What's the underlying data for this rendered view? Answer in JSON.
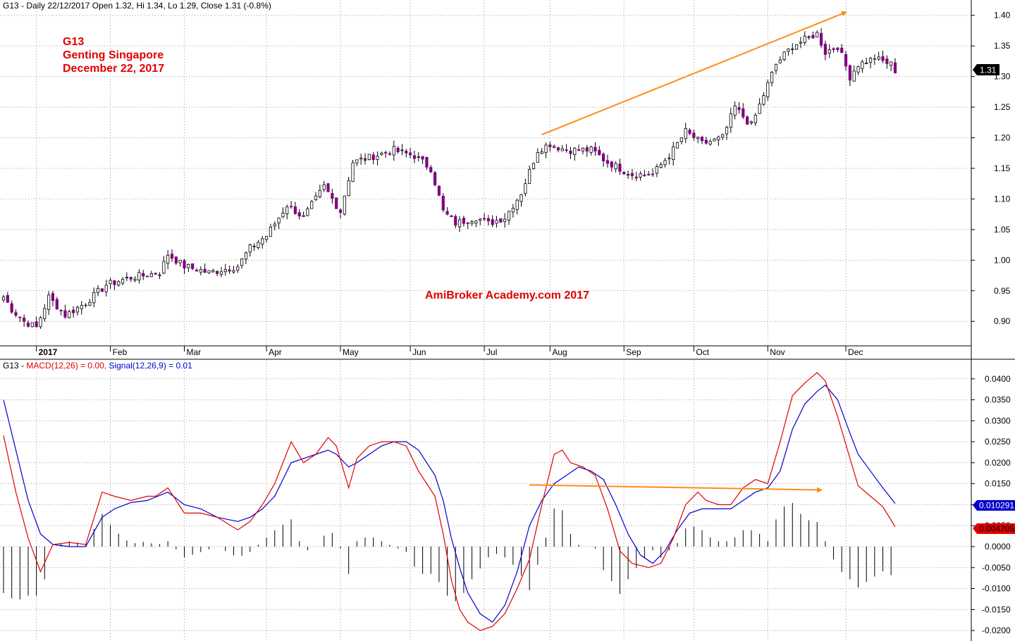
{
  "price_title": {
    "symbol": "G13",
    "text": "G13 - Daily 22/12/2017 Open 1.32, Hi 1.34, Lo 1.29, Close 1.31 (-0.8%)"
  },
  "annotations": {
    "line1": "G13",
    "line2": "Genting Singapore",
    "line3": "December 22, 2017",
    "watermark": "AmiBroker Academy.com 2017"
  },
  "macd_title": {
    "prefix": "G13 - ",
    "macd": "MACD(12,26) = 0.00,",
    "signal": "Signal(12,26,9) = 0.01"
  },
  "colors": {
    "up_candle": "#ffffff",
    "down_candle": "#800080",
    "macd_line": "#e00000",
    "signal_line": "#0000cc",
    "histogram": "#000000",
    "trend_arrow": "#ff8c1a",
    "grid": "#9a9a9a"
  },
  "chart_data": [
    {
      "type": "candlestick",
      "title": "G13 - Daily 22/12/2017 Open 1.32, Hi 1.34, Lo 1.29, Close 1.31 (-0.8%)",
      "xlabel": "",
      "ylabel": "",
      "x_axis_labels": [
        "2017",
        "Feb",
        "Mar",
        "Apr",
        "May",
        "Jun",
        "Jul",
        "Aug",
        "Sep",
        "Oct",
        "Nov",
        "Dec"
      ],
      "y_ticks": [
        1.4,
        1.35,
        1.3,
        1.25,
        1.2,
        1.15,
        1.1,
        1.05,
        1.0,
        0.95,
        0.9
      ],
      "ylim": [
        0.86,
        1.425
      ],
      "last_value_label": "1.31",
      "close_keypoints": [
        {
          "x": 0,
          "y": 0.94
        },
        {
          "x": 2,
          "y": 0.92
        },
        {
          "x": 5,
          "y": 0.9
        },
        {
          "x": 8,
          "y": 0.89
        },
        {
          "x": 11,
          "y": 0.94
        },
        {
          "x": 15,
          "y": 0.91
        },
        {
          "x": 20,
          "y": 0.93
        },
        {
          "x": 25,
          "y": 0.96
        },
        {
          "x": 30,
          "y": 0.97
        },
        {
          "x": 38,
          "y": 0.98
        },
        {
          "x": 40,
          "y": 1.01
        },
        {
          "x": 44,
          "y": 0.99
        },
        {
          "x": 50,
          "y": 0.98
        },
        {
          "x": 57,
          "y": 0.99
        },
        {
          "x": 60,
          "y": 1.02
        },
        {
          "x": 64,
          "y": 1.04
        },
        {
          "x": 69,
          "y": 1.09
        },
        {
          "x": 73,
          "y": 1.07
        },
        {
          "x": 78,
          "y": 1.12
        },
        {
          "x": 82,
          "y": 1.08
        },
        {
          "x": 85,
          "y": 1.16
        },
        {
          "x": 90,
          "y": 1.17
        },
        {
          "x": 95,
          "y": 1.18
        },
        {
          "x": 100,
          "y": 1.17
        },
        {
          "x": 104,
          "y": 1.15
        },
        {
          "x": 107,
          "y": 1.08
        },
        {
          "x": 110,
          "y": 1.06
        },
        {
          "x": 115,
          "y": 1.07
        },
        {
          "x": 118,
          "y": 1.06
        },
        {
          "x": 122,
          "y": 1.07
        },
        {
          "x": 126,
          "y": 1.11
        },
        {
          "x": 130,
          "y": 1.18
        },
        {
          "x": 133,
          "y": 1.19
        },
        {
          "x": 137,
          "y": 1.18
        },
        {
          "x": 143,
          "y": 1.18
        },
        {
          "x": 147,
          "y": 1.16
        },
        {
          "x": 153,
          "y": 1.14
        },
        {
          "x": 158,
          "y": 1.14
        },
        {
          "x": 163,
          "y": 1.18
        },
        {
          "x": 166,
          "y": 1.21
        },
        {
          "x": 170,
          "y": 1.19
        },
        {
          "x": 175,
          "y": 1.2
        },
        {
          "x": 178,
          "y": 1.25
        },
        {
          "x": 182,
          "y": 1.22
        },
        {
          "x": 185,
          "y": 1.27
        },
        {
          "x": 188,
          "y": 1.32
        },
        {
          "x": 192,
          "y": 1.35
        },
        {
          "x": 195,
          "y": 1.36
        },
        {
          "x": 198,
          "y": 1.37
        },
        {
          "x": 200,
          "y": 1.34
        },
        {
          "x": 203,
          "y": 1.35
        },
        {
          "x": 206,
          "y": 1.3
        },
        {
          "x": 208,
          "y": 1.32
        },
        {
          "x": 212,
          "y": 1.33
        },
        {
          "x": 216,
          "y": 1.32
        },
        {
          "x": 217,
          "y": 1.31
        }
      ],
      "trend_line": {
        "from": {
          "x": 131,
          "y": 1.205
        },
        "to": {
          "x": 205,
          "y": 1.405
        }
      }
    },
    {
      "type": "line",
      "title": "G13 - MACD(12,26) = 0.00, Signal(12,26,9) = 0.01",
      "y_ticks": [
        0.04,
        0.035,
        0.03,
        0.025,
        0.02,
        0.015,
        0.01,
        0.005,
        0.0,
        -0.005,
        -0.01,
        -0.015,
        -0.02
      ],
      "y_tick_labels": [
        "0.0400",
        "0.0350",
        "0.0300",
        "0.0250",
        "0.0200",
        "0.0150",
        "0.0100",
        "0.0050",
        "0.0000",
        "-0.0050",
        "-0.0100",
        "-0.0150",
        "-0.0200"
      ],
      "ylim": [
        -0.0225,
        0.0445
      ],
      "value_labels": {
        "signal": "0.010291",
        "macd": "0.004705"
      },
      "series": [
        {
          "name": "MACD(12,26)",
          "key": "macd",
          "points": [
            {
              "x": 0,
              "y": 0.0265
            },
            {
              "x": 3,
              "y": 0.013
            },
            {
              "x": 6,
              "y": 0.002
            },
            {
              "x": 9,
              "y": -0.006
            },
            {
              "x": 12,
              "y": 0.0005
            },
            {
              "x": 16,
              "y": 0.001
            },
            {
              "x": 20,
              "y": 0.0005
            },
            {
              "x": 24,
              "y": 0.013
            },
            {
              "x": 27,
              "y": 0.012
            },
            {
              "x": 31,
              "y": 0.011
            },
            {
              "x": 35,
              "y": 0.012
            },
            {
              "x": 37,
              "y": 0.012
            },
            {
              "x": 40,
              "y": 0.014
            },
            {
              "x": 44,
              "y": 0.008
            },
            {
              "x": 48,
              "y": 0.008
            },
            {
              "x": 52,
              "y": 0.007
            },
            {
              "x": 57,
              "y": 0.004
            },
            {
              "x": 60,
              "y": 0.006
            },
            {
              "x": 63,
              "y": 0.01
            },
            {
              "x": 66,
              "y": 0.015
            },
            {
              "x": 70,
              "y": 0.025
            },
            {
              "x": 73,
              "y": 0.02
            },
            {
              "x": 76,
              "y": 0.022
            },
            {
              "x": 79,
              "y": 0.026
            },
            {
              "x": 81,
              "y": 0.024
            },
            {
              "x": 84,
              "y": 0.014
            },
            {
              "x": 86,
              "y": 0.021
            },
            {
              "x": 89,
              "y": 0.024
            },
            {
              "x": 92,
              "y": 0.025
            },
            {
              "x": 95,
              "y": 0.025
            },
            {
              "x": 98,
              "y": 0.024
            },
            {
              "x": 101,
              "y": 0.018
            },
            {
              "x": 105,
              "y": 0.012
            },
            {
              "x": 107,
              "y": 0.003
            },
            {
              "x": 109,
              "y": -0.008
            },
            {
              "x": 111,
              "y": -0.015
            },
            {
              "x": 113,
              "y": -0.018
            },
            {
              "x": 116,
              "y": -0.02
            },
            {
              "x": 119,
              "y": -0.019
            },
            {
              "x": 122,
              "y": -0.016
            },
            {
              "x": 125,
              "y": -0.01
            },
            {
              "x": 128,
              "y": -0.003
            },
            {
              "x": 131,
              "y": 0.01
            },
            {
              "x": 134,
              "y": 0.022
            },
            {
              "x": 136,
              "y": 0.023
            },
            {
              "x": 138,
              "y": 0.02
            },
            {
              "x": 141,
              "y": 0.019
            },
            {
              "x": 144,
              "y": 0.017
            },
            {
              "x": 147,
              "y": 0.009
            },
            {
              "x": 150,
              "y": -0.001
            },
            {
              "x": 153,
              "y": -0.004
            },
            {
              "x": 157,
              "y": -0.005
            },
            {
              "x": 160,
              "y": -0.004
            },
            {
              "x": 163,
              "y": 0.002
            },
            {
              "x": 166,
              "y": 0.01
            },
            {
              "x": 169,
              "y": 0.013
            },
            {
              "x": 171,
              "y": 0.011
            },
            {
              "x": 174,
              "y": 0.01
            },
            {
              "x": 177,
              "y": 0.01
            },
            {
              "x": 180,
              "y": 0.014
            },
            {
              "x": 183,
              "y": 0.016
            },
            {
              "x": 186,
              "y": 0.015
            },
            {
              "x": 189,
              "y": 0.025
            },
            {
              "x": 192,
              "y": 0.036
            },
            {
              "x": 195,
              "y": 0.039
            },
            {
              "x": 198,
              "y": 0.0415
            },
            {
              "x": 200,
              "y": 0.0395
            },
            {
              "x": 203,
              "y": 0.031
            },
            {
              "x": 206,
              "y": 0.021
            },
            {
              "x": 208,
              "y": 0.0145
            },
            {
              "x": 211,
              "y": 0.012
            },
            {
              "x": 214,
              "y": 0.0095
            },
            {
              "x": 217,
              "y": 0.0047
            }
          ]
        },
        {
          "name": "Signal(12,26,9)",
          "key": "signal",
          "points": [
            {
              "x": 0,
              "y": 0.035
            },
            {
              "x": 3,
              "y": 0.023
            },
            {
              "x": 6,
              "y": 0.011
            },
            {
              "x": 9,
              "y": 0.003
            },
            {
              "x": 12,
              "y": 0.0005
            },
            {
              "x": 16,
              "y": 0.0
            },
            {
              "x": 20,
              "y": 0.0
            },
            {
              "x": 24,
              "y": 0.007
            },
            {
              "x": 27,
              "y": 0.009
            },
            {
              "x": 31,
              "y": 0.0105
            },
            {
              "x": 35,
              "y": 0.011
            },
            {
              "x": 40,
              "y": 0.013
            },
            {
              "x": 44,
              "y": 0.01
            },
            {
              "x": 48,
              "y": 0.009
            },
            {
              "x": 52,
              "y": 0.007
            },
            {
              "x": 57,
              "y": 0.006
            },
            {
              "x": 60,
              "y": 0.007
            },
            {
              "x": 63,
              "y": 0.009
            },
            {
              "x": 66,
              "y": 0.012
            },
            {
              "x": 70,
              "y": 0.02
            },
            {
              "x": 73,
              "y": 0.021
            },
            {
              "x": 76,
              "y": 0.022
            },
            {
              "x": 79,
              "y": 0.023
            },
            {
              "x": 81,
              "y": 0.022
            },
            {
              "x": 84,
              "y": 0.019
            },
            {
              "x": 86,
              "y": 0.02
            },
            {
              "x": 89,
              "y": 0.022
            },
            {
              "x": 92,
              "y": 0.024
            },
            {
              "x": 95,
              "y": 0.025
            },
            {
              "x": 98,
              "y": 0.025
            },
            {
              "x": 101,
              "y": 0.023
            },
            {
              "x": 105,
              "y": 0.017
            },
            {
              "x": 107,
              "y": 0.011
            },
            {
              "x": 109,
              "y": 0.002
            },
            {
              "x": 111,
              "y": -0.005
            },
            {
              "x": 113,
              "y": -0.011
            },
            {
              "x": 116,
              "y": -0.016
            },
            {
              "x": 119,
              "y": -0.018
            },
            {
              "x": 122,
              "y": -0.014
            },
            {
              "x": 125,
              "y": -0.006
            },
            {
              "x": 128,
              "y": 0.005
            },
            {
              "x": 131,
              "y": 0.011
            },
            {
              "x": 134,
              "y": 0.015
            },
            {
              "x": 137,
              "y": 0.017
            },
            {
              "x": 140,
              "y": 0.019
            },
            {
              "x": 143,
              "y": 0.018
            },
            {
              "x": 146,
              "y": 0.016
            },
            {
              "x": 149,
              "y": 0.01
            },
            {
              "x": 152,
              "y": 0.003
            },
            {
              "x": 155,
              "y": -0.002
            },
            {
              "x": 158,
              "y": -0.004
            },
            {
              "x": 161,
              "y": -0.001
            },
            {
              "x": 164,
              "y": 0.004
            },
            {
              "x": 167,
              "y": 0.008
            },
            {
              "x": 170,
              "y": 0.009
            },
            {
              "x": 174,
              "y": 0.009
            },
            {
              "x": 177,
              "y": 0.009
            },
            {
              "x": 180,
              "y": 0.011
            },
            {
              "x": 183,
              "y": 0.013
            },
            {
              "x": 186,
              "y": 0.014
            },
            {
              "x": 189,
              "y": 0.018
            },
            {
              "x": 192,
              "y": 0.028
            },
            {
              "x": 195,
              "y": 0.034
            },
            {
              "x": 198,
              "y": 0.037
            },
            {
              "x": 200,
              "y": 0.0385
            },
            {
              "x": 203,
              "y": 0.035
            },
            {
              "x": 206,
              "y": 0.027
            },
            {
              "x": 208,
              "y": 0.022
            },
            {
              "x": 211,
              "y": 0.018
            },
            {
              "x": 214,
              "y": 0.014
            },
            {
              "x": 217,
              "y": 0.0103
            }
          ]
        }
      ],
      "trend_line": {
        "from": {
          "x": 128,
          "y": 0.0147
        },
        "to": {
          "x": 199,
          "y": 0.0135
        }
      }
    }
  ]
}
